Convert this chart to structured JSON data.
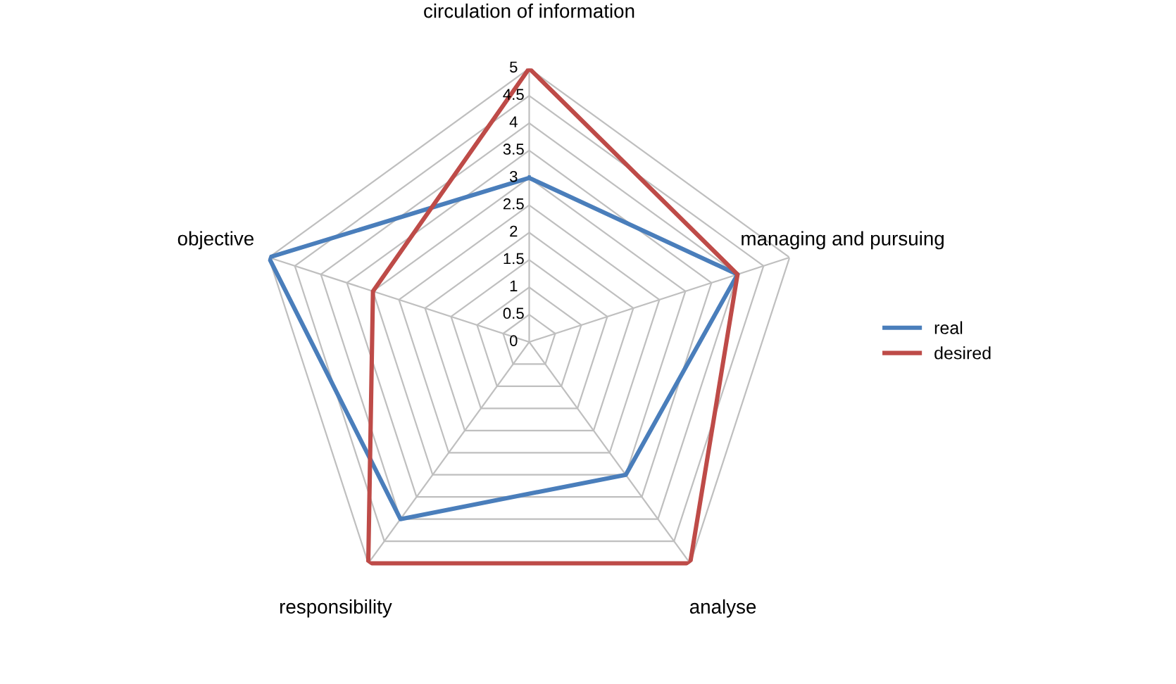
{
  "chart_data": {
    "type": "radar",
    "categories": [
      "circulation of information",
      "managing and pursuing",
      "analyse",
      "responsibility",
      "objective"
    ],
    "series": [
      {
        "name": "real",
        "color": "#4a7ebb",
        "values": [
          3,
          4,
          3,
          4,
          5
        ]
      },
      {
        "name": "desired",
        "color": "#be4b48",
        "values": [
          5,
          4,
          5,
          5,
          3
        ]
      }
    ],
    "ylim": [
      0,
      5
    ],
    "yticks": [
      0,
      0.5,
      1,
      1.5,
      2,
      2.5,
      3,
      3.5,
      4,
      4.5,
      5
    ],
    "grid": true,
    "legend": "right",
    "marker": "none",
    "line_style": "solid"
  }
}
